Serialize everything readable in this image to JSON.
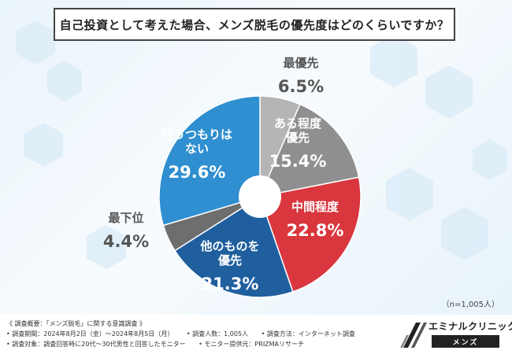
{
  "title": "自己投資として考えた場合、メンズ脱毛の優先度はどのくらいですか？",
  "sample_size": "（n=1,005人）",
  "chart_data": {
    "type": "pie",
    "title": "自己投資として考えた場合、メンズ脱毛の優先度はどのくらいですか？",
    "slices": [
      {
        "label_lines": [
          "最優先"
        ],
        "value": 6.5,
        "value_text": "6.5%",
        "color": "#b5b5b5"
      },
      {
        "label_lines": [
          "ある程度",
          "優先"
        ],
        "value": 15.4,
        "value_text": "15.4%",
        "color": "#8f8f8f"
      },
      {
        "label_lines": [
          "中間程度"
        ],
        "value": 22.8,
        "value_text": "22.8%",
        "color": "#d9363e"
      },
      {
        "label_lines": [
          "他のものを",
          "優先"
        ],
        "value": 21.3,
        "value_text": "21.3%",
        "color": "#1f5f9e"
      },
      {
        "label_lines": [
          "最下位"
        ],
        "value": 4.4,
        "value_text": "4.4%",
        "color": "#6e6e6e"
      },
      {
        "label_lines": [
          "行うつもりは",
          "ない"
        ],
        "value": 29.6,
        "value_text": "29.6%",
        "color": "#2f8fd0"
      }
    ]
  },
  "footer": {
    "heading": "《 調査概要：「メンズ脱毛」に関する意識調査 》",
    "period": "• 調査期間：2024年8月2日（金）〜2024年8月5日（月）",
    "count": "• 調査人数：1,005人",
    "method": "• 調査方法：インターネット調査",
    "target": "• 調査対象：調査回答時に20代〜30代男性と回答したモニター",
    "provider": "• モニター提供元：PRIZMAリサーチ"
  },
  "brand": {
    "name": "エミナルクリニック",
    "sub": "メンズ"
  },
  "colors": {
    "accent_blue": "#2f8fd0",
    "accent_red": "#d9363e"
  }
}
